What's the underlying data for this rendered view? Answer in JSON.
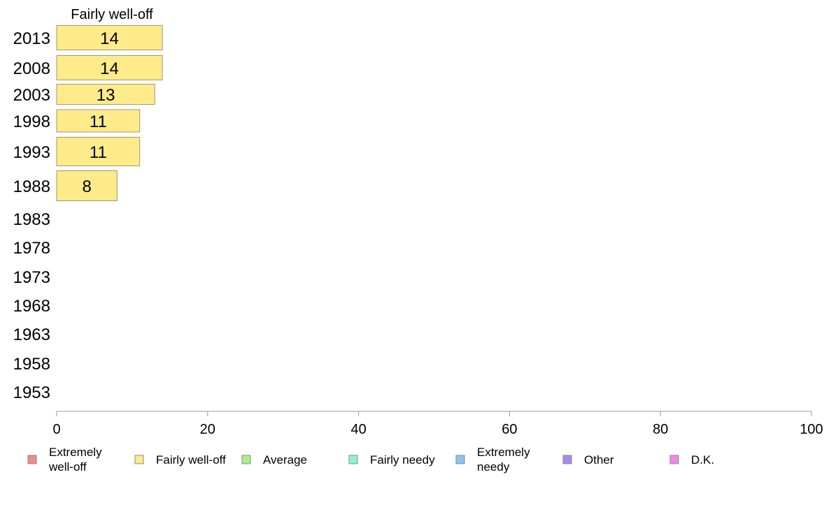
{
  "chart_data": {
    "type": "bar",
    "orientation": "horizontal",
    "stacked": true,
    "categories": [
      "2013",
      "2008",
      "2003",
      "1998",
      "1993",
      "1988",
      "1983",
      "1978",
      "1973",
      "1968",
      "1963",
      "1958",
      "1953"
    ],
    "series": [
      {
        "name": "Extremely well-off",
        "color": "#f28b8b",
        "values": [
          null,
          null,
          null,
          null,
          null,
          null,
          null,
          null,
          null,
          null,
          null,
          null,
          null
        ]
      },
      {
        "name": "Fairly well-off",
        "color": "#ffeb8a",
        "values": [
          14,
          14,
          13,
          11,
          11,
          8,
          null,
          null,
          null,
          null,
          null,
          null,
          null
        ]
      },
      {
        "name": "Average",
        "color": "#a6f08a",
        "values": [
          null,
          null,
          null,
          null,
          null,
          null,
          null,
          null,
          null,
          null,
          null,
          null,
          null
        ]
      },
      {
        "name": "Fairly needy",
        "color": "#8af5c8",
        "values": [
          null,
          null,
          null,
          null,
          null,
          null,
          null,
          null,
          null,
          null,
          null,
          null,
          null
        ]
      },
      {
        "name": "Extremely needy",
        "color": "#8ac4f0",
        "values": [
          null,
          null,
          null,
          null,
          null,
          null,
          null,
          null,
          null,
          null,
          null,
          null,
          null
        ]
      },
      {
        "name": "Other",
        "color": "#a78af0",
        "values": [
          null,
          null,
          null,
          null,
          null,
          null,
          null,
          null,
          null,
          null,
          null,
          null,
          null
        ]
      },
      {
        "name": "D.K.",
        "color": "#f08ae8",
        "values": [
          null,
          null,
          null,
          null,
          null,
          null,
          null,
          null,
          null,
          null,
          null,
          null,
          null
        ]
      }
    ],
    "visible_series_title": "Fairly well-off",
    "xlim": [
      0,
      100
    ],
    "xticks": [
      0,
      20,
      40,
      60,
      80,
      100
    ],
    "grid": false,
    "legend_position": "bottom",
    "legend_labels": [
      [
        "Extremely",
        "well-off"
      ],
      [
        "Fairly well-off"
      ],
      [
        "Average"
      ],
      [
        "Fairly needy"
      ],
      [
        "Extremely",
        "needy"
      ],
      [
        "Other"
      ],
      [
        "D.K."
      ]
    ]
  }
}
